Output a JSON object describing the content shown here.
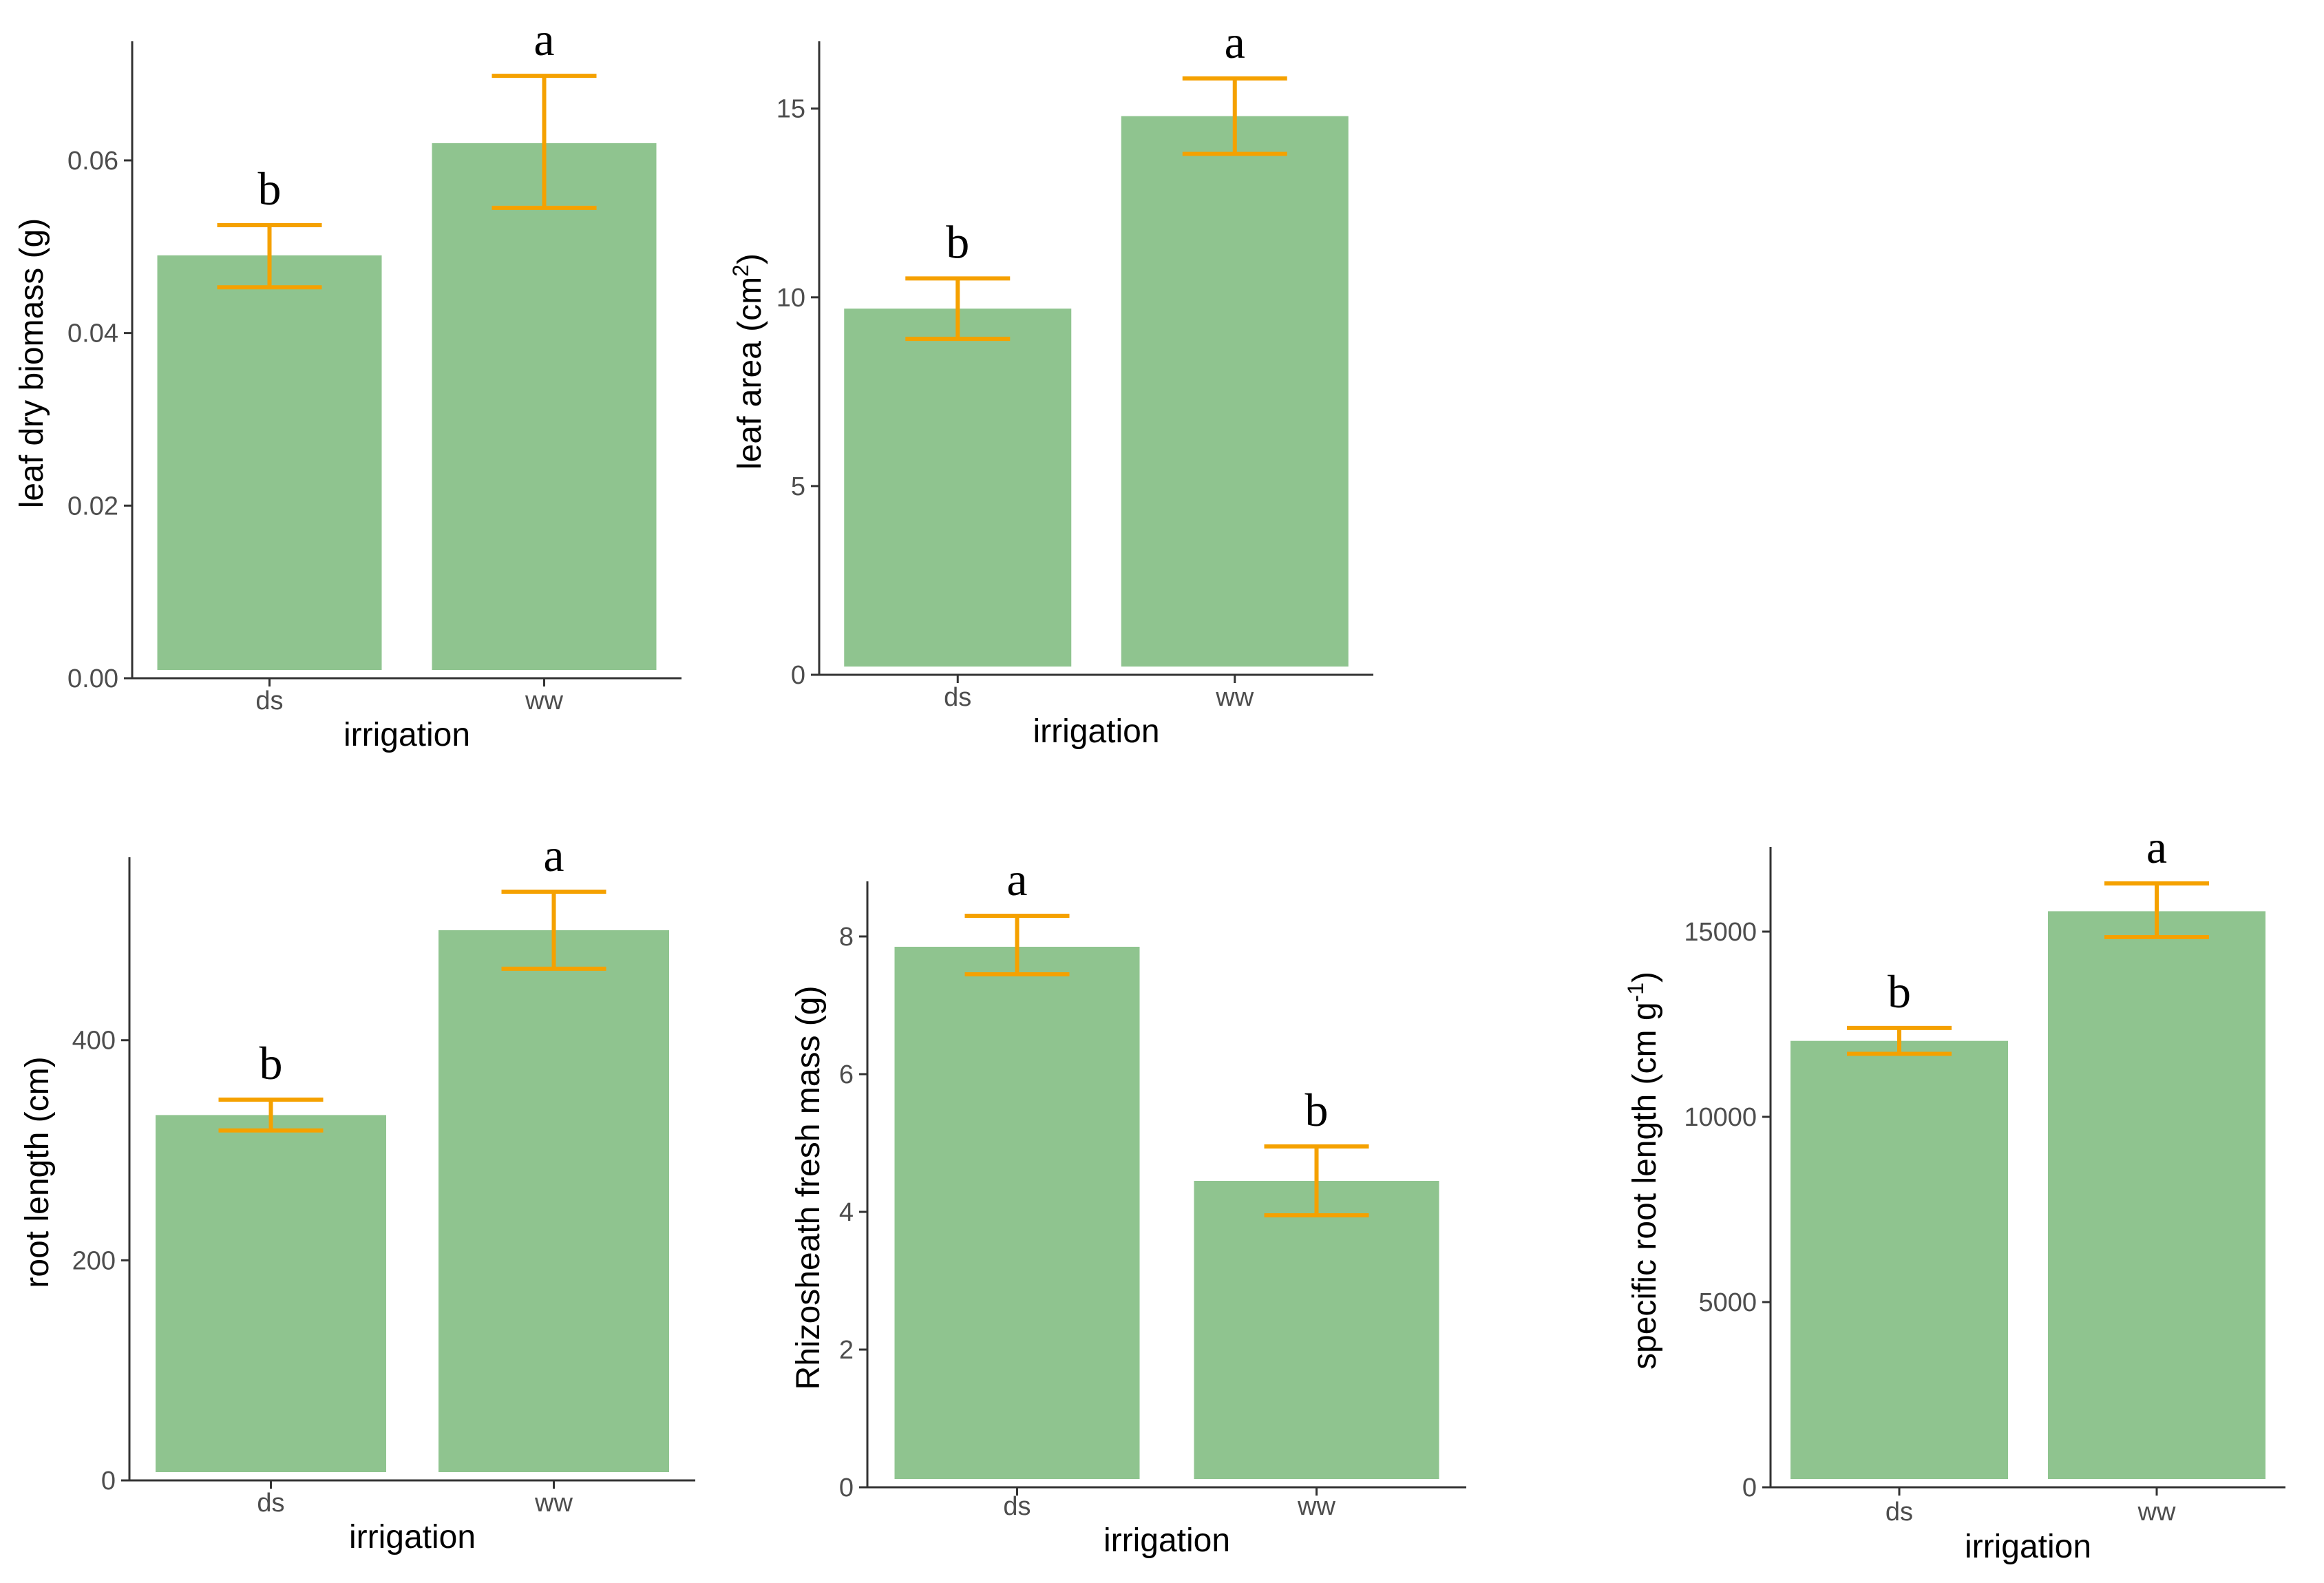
{
  "colors": {
    "bar": "#8fc48f",
    "error_bar": "#f5a100",
    "axis": "#333333",
    "tick_text": "#4d4d4d"
  },
  "chart_data": [
    {
      "type": "bar",
      "categories": [
        "ds",
        "ww"
      ],
      "values": [
        0.049,
        0.062
      ],
      "error_low": [
        0.0453,
        0.0545
      ],
      "error_high": [
        0.0525,
        0.0698
      ],
      "significance": [
        "b",
        "a"
      ],
      "xlabel": "irrigation",
      "ylabel": "leaf dry biomass (g)",
      "ylim": [
        0,
        0.073
      ],
      "yticks": [
        0,
        0.02,
        0.04,
        0.06
      ],
      "ytick_labels": [
        "0.00",
        "0.02",
        "0.04",
        "0.06"
      ],
      "grid": false
    },
    {
      "type": "bar",
      "categories": [
        "ds",
        "ww"
      ],
      "values": [
        9.7,
        14.8
      ],
      "error_low": [
        8.9,
        13.8
      ],
      "error_high": [
        10.5,
        15.8
      ],
      "significance": [
        "b",
        "a"
      ],
      "xlabel": "irrigation",
      "ylabel": "leaf area (cm",
      "ylabel_superscript": "2",
      "ylabel_suffix": ")",
      "ylim": [
        0,
        16.6
      ],
      "yticks": [
        0,
        5,
        10,
        15
      ],
      "ytick_labels": [
        "0",
        "5",
        "10",
        "15"
      ],
      "grid": false
    },
    {
      "type": "bar",
      "categories": [
        "ds",
        "ww"
      ],
      "values": [
        332,
        500
      ],
      "error_low": [
        318,
        465
      ],
      "error_high": [
        346,
        535
      ],
      "significance": [
        "b",
        "a"
      ],
      "xlabel": "irrigation",
      "ylabel": "root length (cm)",
      "ylim": [
        0,
        560
      ],
      "yticks": [
        0,
        200,
        400
      ],
      "ytick_labels": [
        "0",
        "200",
        "400"
      ],
      "grid": false
    },
    {
      "type": "bar",
      "categories": [
        "ds",
        "ww"
      ],
      "values": [
        7.85,
        4.45
      ],
      "error_low": [
        7.45,
        3.95
      ],
      "error_high": [
        8.3,
        4.95
      ],
      "significance": [
        "a",
        "b"
      ],
      "xlabel": "irrigation",
      "ylabel": "Rhizosheath fresh mass (g)",
      "ylim": [
        0,
        8.7
      ],
      "yticks": [
        0,
        2,
        4,
        6,
        8
      ],
      "ytick_labels": [
        "0",
        "2",
        "4",
        "6",
        "8"
      ],
      "grid": false
    },
    {
      "type": "bar",
      "categories": [
        "ds",
        "ww"
      ],
      "values": [
        12050,
        15550
      ],
      "error_low": [
        11700,
        14850
      ],
      "error_high": [
        12400,
        16300
      ],
      "significance": [
        "b",
        "a"
      ],
      "xlabel": "irrigation",
      "ylabel": "specific root length (cm g",
      "ylabel_superscript": "-1",
      "ylabel_suffix": ")",
      "ylim": [
        0,
        17100
      ],
      "yticks": [
        0,
        5000,
        10000,
        15000
      ],
      "ytick_labels": [
        "0",
        "5000",
        "10000",
        "15000"
      ],
      "grid": false
    }
  ]
}
